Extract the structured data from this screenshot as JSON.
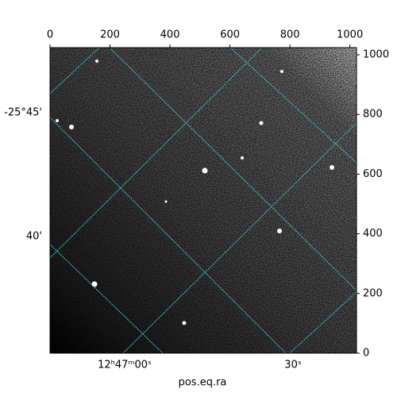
{
  "chart_data": {
    "type": "image",
    "xlabel": "pos.eq.ra",
    "xlim": [
      0,
      1022
    ],
    "xticks": [
      0,
      200,
      400,
      600,
      800,
      1000
    ],
    "ylim": [
      0,
      1024
    ],
    "yticks": [
      0,
      200,
      400,
      600,
      800,
      1000
    ],
    "wcs_y_labels": [
      "-25°45'",
      "40'"
    ],
    "wcs_x_labels": [
      "12ʰ47ᵐ00ˢ",
      "30ˢ"
    ],
    "grid_color": "#40c8c8"
  }
}
